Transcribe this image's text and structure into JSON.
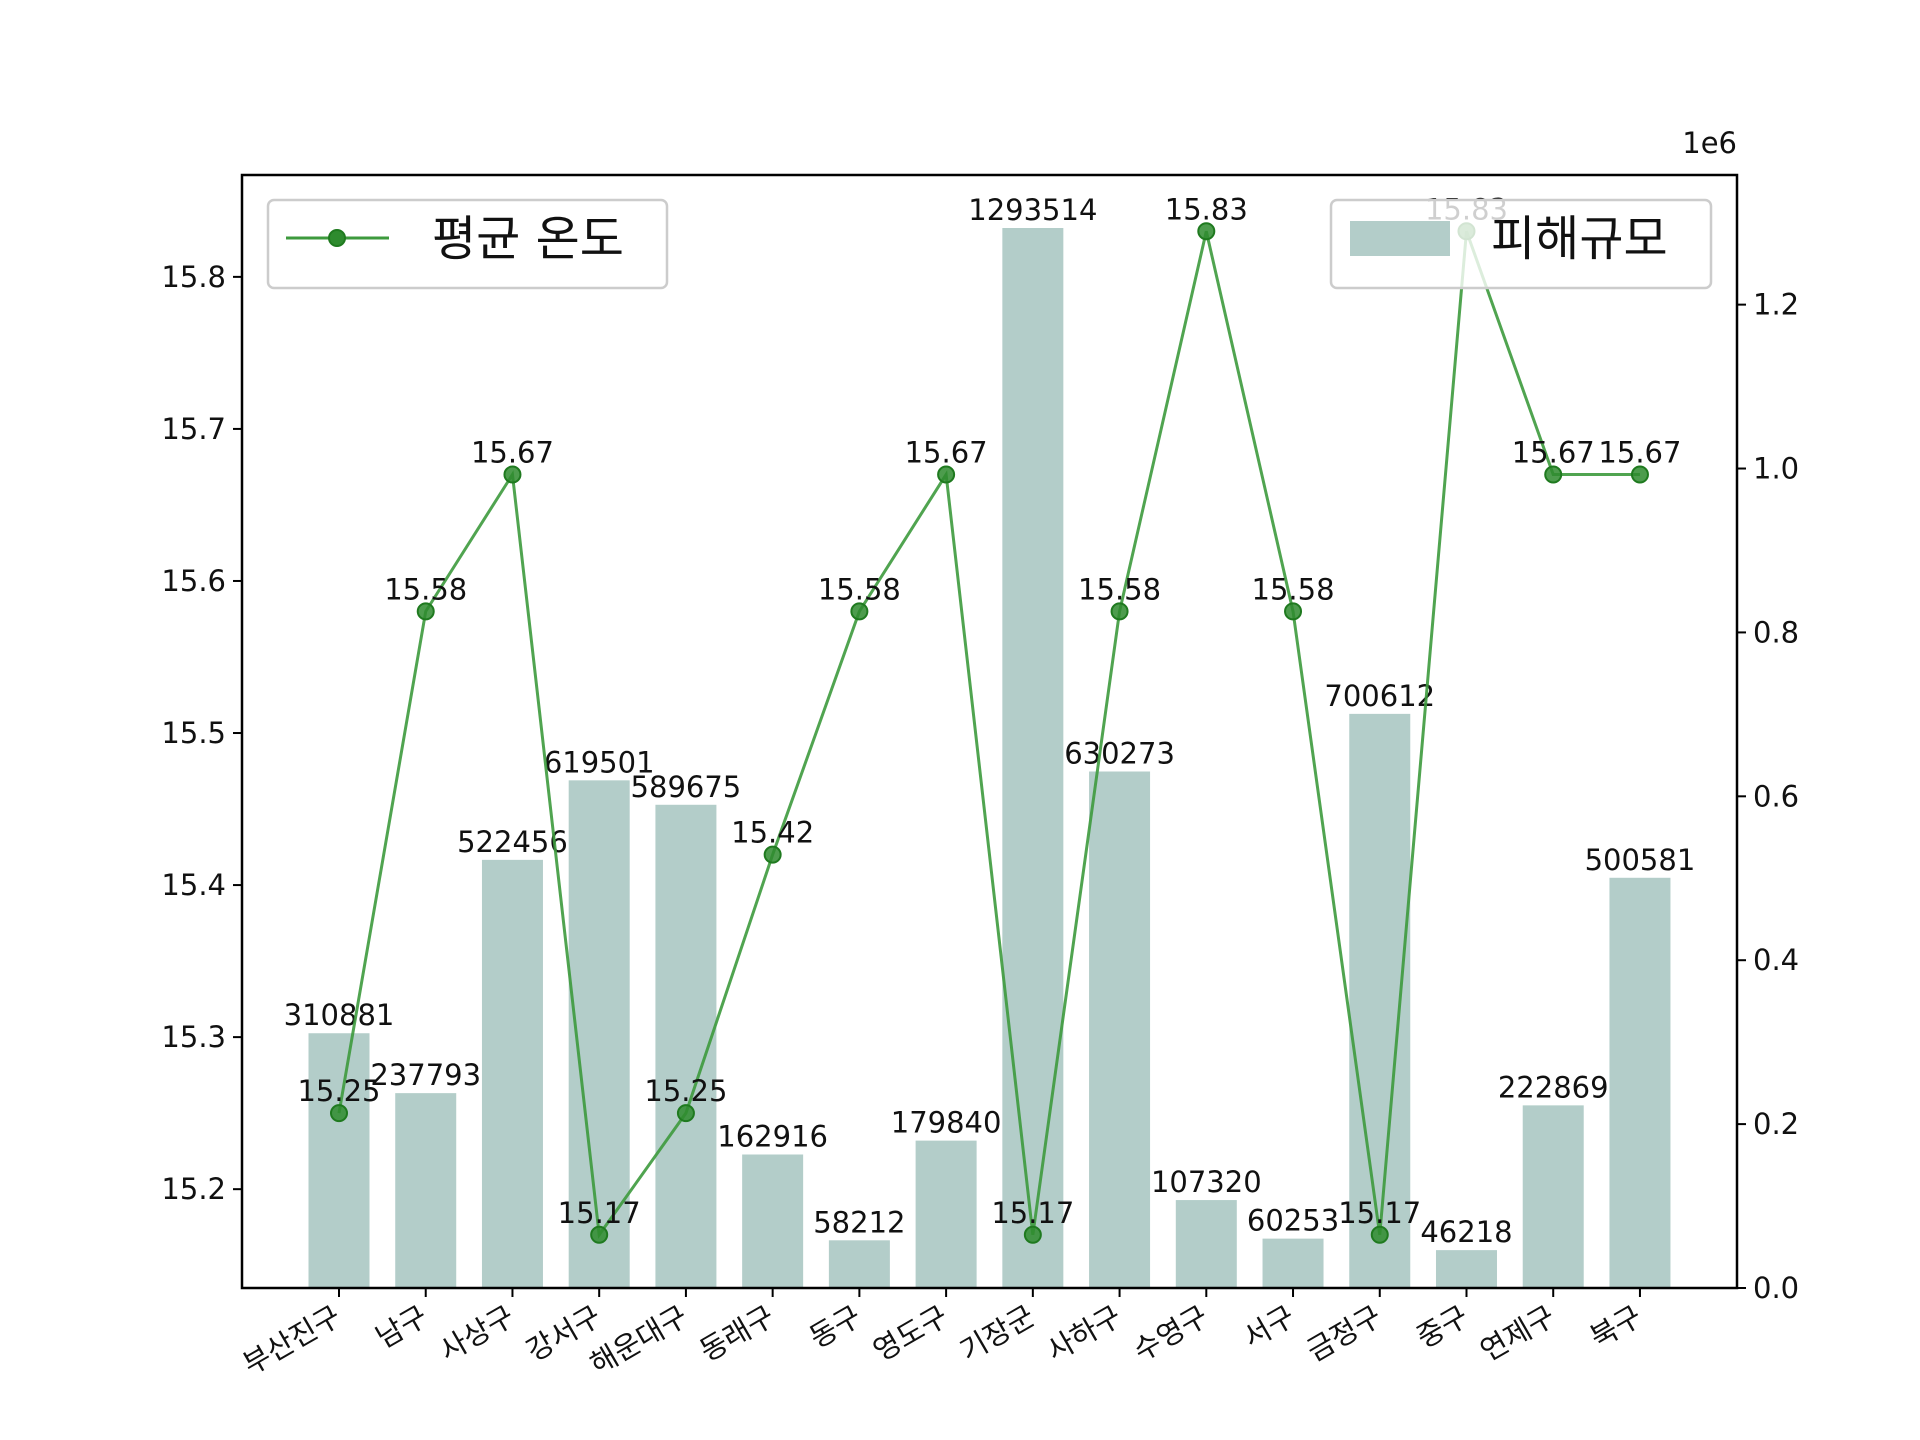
{
  "chart_data": {
    "type": "bar",
    "categories": [
      "부산진구",
      "남구",
      "사상구",
      "강서구",
      "해운대구",
      "동래구",
      "동구",
      "영도구",
      "기장군",
      "사하구",
      "수영구",
      "서구",
      "금정구",
      "중구",
      "연제구",
      "북구"
    ],
    "series": [
      {
        "name": "피해규모",
        "type": "bar",
        "axis": "right",
        "color": "#b3cdc9",
        "values": [
          310881,
          237793,
          522456,
          619501,
          589675,
          162916,
          58212,
          179840,
          1293514,
          630273,
          107320,
          60253,
          700612,
          46218,
          222869,
          500581
        ],
        "labels": [
          "310881",
          "237793",
          "522456",
          "619501",
          "589675",
          "162916",
          "58212",
          "179840",
          "1293514",
          "630273",
          "107320",
          "60253",
          "700612",
          "46218",
          "222869",
          "500581"
        ]
      },
      {
        "name": "평균 온도",
        "type": "line",
        "axis": "left",
        "color": "#3d9a3d",
        "marker": "circle",
        "values": [
          15.25,
          15.58,
          15.67,
          15.17,
          15.25,
          15.42,
          15.58,
          15.67,
          15.17,
          15.58,
          15.83,
          15.58,
          15.17,
          15.83,
          15.67,
          15.67
        ],
        "labels": [
          "15.25",
          "15.58",
          "15.67",
          "15.17",
          "15.25",
          "15.42",
          "15.58",
          "15.67",
          "15.17",
          "15.58",
          "15.83",
          "15.58",
          "15.17",
          "15.83",
          "15.67",
          "15.67"
        ]
      }
    ],
    "left_axis": {
      "ylim": [
        15.135,
        15.867
      ],
      "ticks": [
        15.2,
        15.3,
        15.4,
        15.5,
        15.6,
        15.7,
        15.8
      ],
      "tick_labels": [
        "15.2",
        "15.3",
        "15.4",
        "15.5",
        "15.6",
        "15.7",
        "15.8"
      ]
    },
    "right_axis": {
      "ylim": [
        0,
        1358190
      ],
      "ticks": [
        0,
        200000,
        400000,
        600000,
        800000,
        1000000,
        1200000
      ],
      "tick_labels": [
        "0.0",
        "0.2",
        "0.4",
        "0.6",
        "0.8",
        "1.0",
        "1.2"
      ],
      "offset_text": "1e6"
    },
    "legend_left": {
      "placement": "top-left",
      "label": "평균 온도"
    },
    "legend_right": {
      "placement": "top-right",
      "label": "피해규모"
    },
    "grid": false
  }
}
